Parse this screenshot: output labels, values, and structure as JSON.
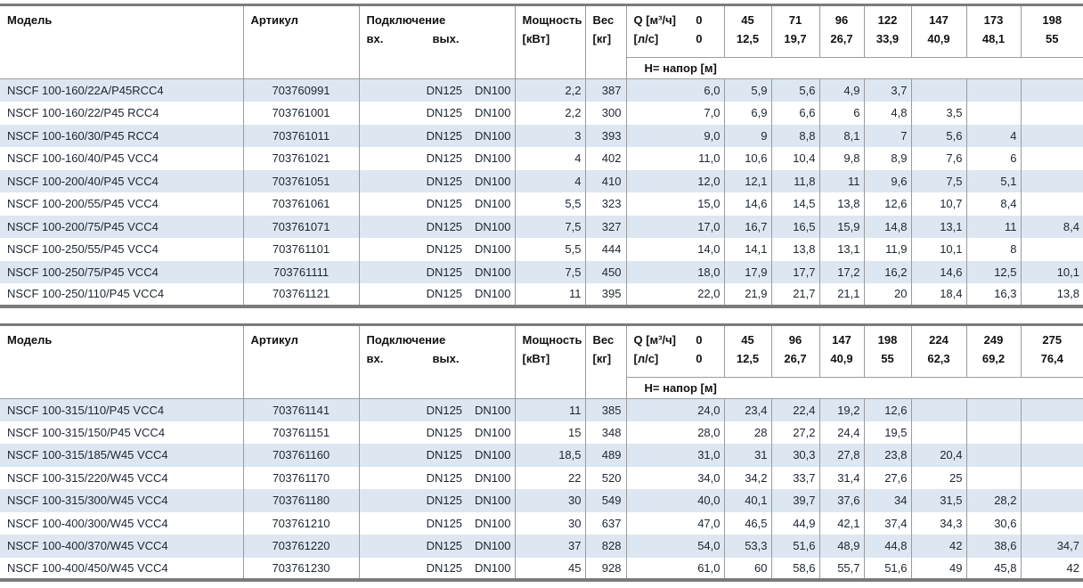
{
  "colors": {
    "stripe": "#dce7f1",
    "line": "#9b9b9b",
    "heavy": "#7b7b7b",
    "text": "#1d2633"
  },
  "header_labels": {
    "model": "Модель",
    "article": "Артикул",
    "connection": "Подключение",
    "conn_in": "вх.",
    "conn_out": "вых.",
    "power_l1": "Мощность",
    "power_l2": "[кВт]",
    "weight_l1": "Вес",
    "weight_l2": "[кг]",
    "q_label": "Q [м³/ч]",
    "q_zero": "0",
    "ls_label": "[л/с]",
    "ls_zero": "0",
    "head_label": "Н= напор [м]"
  },
  "tables": [
    {
      "q_cols": [
        {
          "q": "45",
          "ls": "12,5"
        },
        {
          "q": "71",
          "ls": "19,7"
        },
        {
          "q": "96",
          "ls": "26,7"
        },
        {
          "q": "122",
          "ls": "33,9"
        },
        {
          "q": "147",
          "ls": "40,9"
        },
        {
          "q": "173",
          "ls": "48,1"
        },
        {
          "q": "198",
          "ls": "55"
        }
      ],
      "rows": [
        {
          "model": "NSCF 100-160/22A/P45RCC4",
          "article": "703760991",
          "dn_in": "DN125",
          "dn_out": "DN100",
          "power": "2,2",
          "weight": "387",
          "h": [
            "6,0",
            "5,9",
            "5,6",
            "4,9",
            "3,7",
            "",
            "",
            ""
          ]
        },
        {
          "model": "NSCF 100-160/22/P45 RCC4",
          "article": "703761001",
          "dn_in": "DN125",
          "dn_out": "DN100",
          "power": "2,2",
          "weight": "300",
          "h": [
            "7,0",
            "6,9",
            "6,6",
            "6",
            "4,8",
            "3,5",
            "",
            ""
          ]
        },
        {
          "model": "NSCF 100-160/30/P45 RCC4",
          "article": "703761011",
          "dn_in": "DN125",
          "dn_out": "DN100",
          "power": "3",
          "weight": "393",
          "h": [
            "9,0",
            "9",
            "8,8",
            "8,1",
            "7",
            "5,6",
            "4",
            ""
          ]
        },
        {
          "model": "NSCF 100-160/40/P45 VCC4",
          "article": "703761021",
          "dn_in": "DN125",
          "dn_out": "DN100",
          "power": "4",
          "weight": "402",
          "h": [
            "11,0",
            "10,6",
            "10,4",
            "9,8",
            "8,9",
            "7,6",
            "6",
            ""
          ]
        },
        {
          "model": "NSCF 100-200/40/P45 VCC4",
          "article": "703761051",
          "dn_in": "DN125",
          "dn_out": "DN100",
          "power": "4",
          "weight": "410",
          "h": [
            "12,0",
            "12,1",
            "11,8",
            "11",
            "9,6",
            "7,5",
            "5,1",
            ""
          ]
        },
        {
          "model": "NSCF 100-200/55/P45 VCC4",
          "article": "703761061",
          "dn_in": "DN125",
          "dn_out": "DN100",
          "power": "5,5",
          "weight": "323",
          "h": [
            "15,0",
            "14,6",
            "14,5",
            "13,8",
            "12,6",
            "10,7",
            "8,4",
            ""
          ]
        },
        {
          "model": "NSCF 100-200/75/P45 VCC4",
          "article": "703761071",
          "dn_in": "DN125",
          "dn_out": "DN100",
          "power": "7,5",
          "weight": "327",
          "h": [
            "17,0",
            "16,7",
            "16,5",
            "15,9",
            "14,8",
            "13,1",
            "11",
            "8,4"
          ]
        },
        {
          "model": "NSCF 100-250/55/P45 VCC4",
          "article": "703761101",
          "dn_in": "DN125",
          "dn_out": "DN100",
          "power": "5,5",
          "weight": "444",
          "h": [
            "14,0",
            "14,1",
            "13,8",
            "13,1",
            "11,9",
            "10,1",
            "8",
            ""
          ]
        },
        {
          "model": "NSCF 100-250/75/P45 VCC4",
          "article": "703761111",
          "dn_in": "DN125",
          "dn_out": "DN100",
          "power": "7,5",
          "weight": "450",
          "h": [
            "18,0",
            "17,9",
            "17,7",
            "17,2",
            "16,2",
            "14,6",
            "12,5",
            "10,1"
          ]
        },
        {
          "model": "NSCF 100-250/110/P45 VCC4",
          "article": "703761121",
          "dn_in": "DN125",
          "dn_out": "DN100",
          "power": "11",
          "weight": "395",
          "h": [
            "22,0",
            "21,9",
            "21,7",
            "21,1",
            "20",
            "18,4",
            "16,3",
            "13,8"
          ]
        }
      ]
    },
    {
      "q_cols": [
        {
          "q": "45",
          "ls": "12,5"
        },
        {
          "q": "96",
          "ls": "26,7"
        },
        {
          "q": "147",
          "ls": "40,9"
        },
        {
          "q": "198",
          "ls": "55"
        },
        {
          "q": "224",
          "ls": "62,3"
        },
        {
          "q": "249",
          "ls": "69,2"
        },
        {
          "q": "275",
          "ls": "76,4"
        }
      ],
      "rows": [
        {
          "model": "NSCF 100-315/110/P45 VCC4",
          "article": "703761141",
          "dn_in": "DN125",
          "dn_out": "DN100",
          "power": "11",
          "weight": "385",
          "h": [
            "24,0",
            "23,4",
            "22,4",
            "19,2",
            "12,6",
            "",
            "",
            ""
          ]
        },
        {
          "model": "NSCF 100-315/150/P45 VCC4",
          "article": "703761151",
          "dn_in": "DN125",
          "dn_out": "DN100",
          "power": "15",
          "weight": "348",
          "h": [
            "28,0",
            "28",
            "27,2",
            "24,4",
            "19,5",
            "",
            "",
            ""
          ]
        },
        {
          "model": "NSCF 100-315/185/W45 VCC4",
          "article": "703761160",
          "dn_in": "DN125",
          "dn_out": "DN100",
          "power": "18,5",
          "weight": "489",
          "h": [
            "31,0",
            "31",
            "30,3",
            "27,8",
            "23,8",
            "20,4",
            "",
            ""
          ]
        },
        {
          "model": "NSCF 100-315/220/W45 VCC4",
          "article": "703761170",
          "dn_in": "DN125",
          "dn_out": "DN100",
          "power": "22",
          "weight": "520",
          "h": [
            "34,0",
            "34,2",
            "33,7",
            "31,4",
            "27,6",
            "25",
            "",
            ""
          ]
        },
        {
          "model": "NSCF 100-315/300/W45 VCC4",
          "article": "703761180",
          "dn_in": "DN125",
          "dn_out": "DN100",
          "power": "30",
          "weight": "549",
          "h": [
            "40,0",
            "40,1",
            "39,7",
            "37,6",
            "34",
            "31,5",
            "28,2",
            ""
          ]
        },
        {
          "model": "NSCF 100-400/300/W45 VCC4",
          "article": "703761210",
          "dn_in": "DN125",
          "dn_out": "DN100",
          "power": "30",
          "weight": "637",
          "h": [
            "47,0",
            "46,5",
            "44,9",
            "42,1",
            "37,4",
            "34,3",
            "30,6",
            ""
          ]
        },
        {
          "model": "NSCF 100-400/370/W45 VCC4",
          "article": "703761220",
          "dn_in": "DN125",
          "dn_out": "DN100",
          "power": "37",
          "weight": "828",
          "h": [
            "54,0",
            "53,3",
            "51,6",
            "48,9",
            "44,8",
            "42",
            "38,6",
            "34,7"
          ]
        },
        {
          "model": "NSCF 100-400/450/W45 VCC4",
          "article": "703761230",
          "dn_in": "DN125",
          "dn_out": "DN100",
          "power": "45",
          "weight": "928",
          "h": [
            "61,0",
            "60",
            "58,6",
            "55,7",
            "51,6",
            "49",
            "45,8",
            "42"
          ]
        }
      ]
    }
  ]
}
